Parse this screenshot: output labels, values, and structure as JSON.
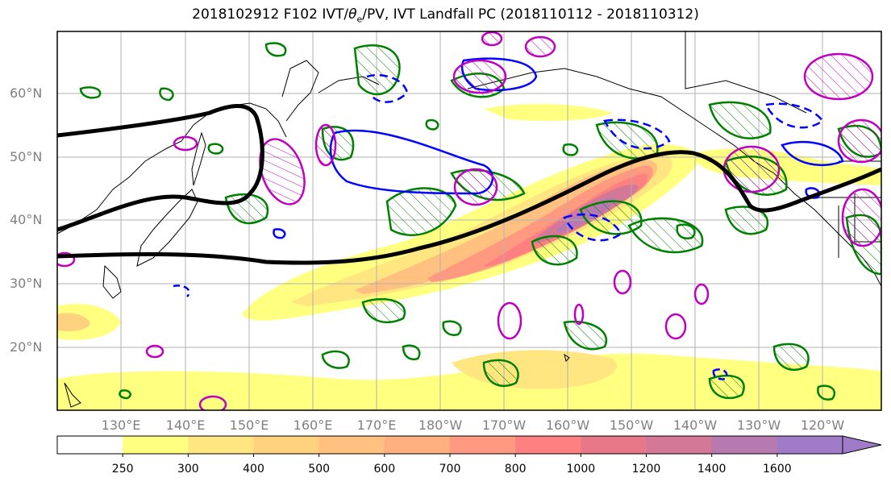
{
  "title": "2018102912 F102 IVT/θe/PV, IVT Landfall PC (2018110112 - 2018110312)",
  "title_parts": {
    "prefix": "2018102912 F102 IVT/",
    "theta": "θ",
    "sub": "e",
    "suffix": "/PV, IVT Landfall PC (2018110112 - 2018110312)"
  },
  "lat_labels": [
    "60°N",
    "50°N",
    "40°N",
    "30°N",
    "20°N"
  ],
  "lon_labels": [
    "130°E",
    "140°E",
    "150°E",
    "160°E",
    "170°E",
    "180°W",
    "170°W",
    "160°W",
    "150°W",
    "140°W",
    "130°W",
    "120°W"
  ],
  "colorbar": {
    "ticks": [
      "250",
      "300",
      "400",
      "500",
      "600",
      "700",
      "800",
      "1000",
      "1200",
      "1400",
      "1600"
    ],
    "colors": [
      "#ffffff",
      "#ffff80",
      "#ffe680",
      "#ffd280",
      "#ffc080",
      "#ffb080",
      "#ff9a80",
      "#ff8080",
      "#e87888",
      "#d47898",
      "#b67ab0",
      "#a07cc8"
    ]
  },
  "legend_colors": {
    "ivt_max": "#a07cc8",
    "pc_positive": "#008000",
    "pc_negative": "#0000ff",
    "pv": "#c000c0",
    "jet": "#000000"
  }
}
